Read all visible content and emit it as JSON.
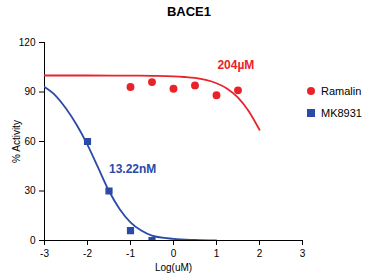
{
  "chart_data": {
    "type": "scatter",
    "title": "BACE1",
    "x_label": "Log(uM)",
    "y_label": "% Activity",
    "xlim": [
      -3,
      3
    ],
    "xticks": [
      -3,
      -2,
      -1,
      0,
      1,
      2,
      3
    ],
    "ylim": [
      0,
      120
    ],
    "yticks": [
      0,
      30,
      60,
      90,
      120
    ],
    "grid": false,
    "legend": "right",
    "series": [
      {
        "name": "Ramalin",
        "color": "#e8232a",
        "marker": "circle",
        "x": [
          -1,
          -0.5,
          0,
          0.5,
          1,
          1.5
        ],
        "values": [
          93,
          96,
          92,
          94,
          88,
          91
        ],
        "annotation": "204µM",
        "curve": {
          "x": [
            -3,
            -2,
            -1,
            -0.5,
            0,
            0.25,
            0.5,
            0.75,
            1,
            1.25,
            1.5,
            1.75,
            2
          ],
          "values": [
            100,
            100,
            99.9,
            99.8,
            99.5,
            99.1,
            98.5,
            97.3,
            95.3,
            92,
            86.6,
            78.4,
            67.1
          ]
        }
      },
      {
        "name": "MK8931",
        "color": "#2b4aa8",
        "marker": "square",
        "x": [
          -2,
          -1.5,
          -1,
          -0.5
        ],
        "values": [
          60,
          30,
          6,
          0
        ],
        "annotation": "13.22nM",
        "curve": {
          "x": [
            -3,
            -2.75,
            -2.5,
            -2.25,
            -2,
            -1.75,
            -1.5,
            -1.25,
            -1,
            -0.75,
            -0.5,
            0,
            0.5,
            1
          ],
          "values": [
            93,
            88,
            80,
            70,
            58,
            44,
            30,
            19,
            11,
            6,
            3,
            1,
            0.3,
            0
          ]
        }
      }
    ]
  }
}
